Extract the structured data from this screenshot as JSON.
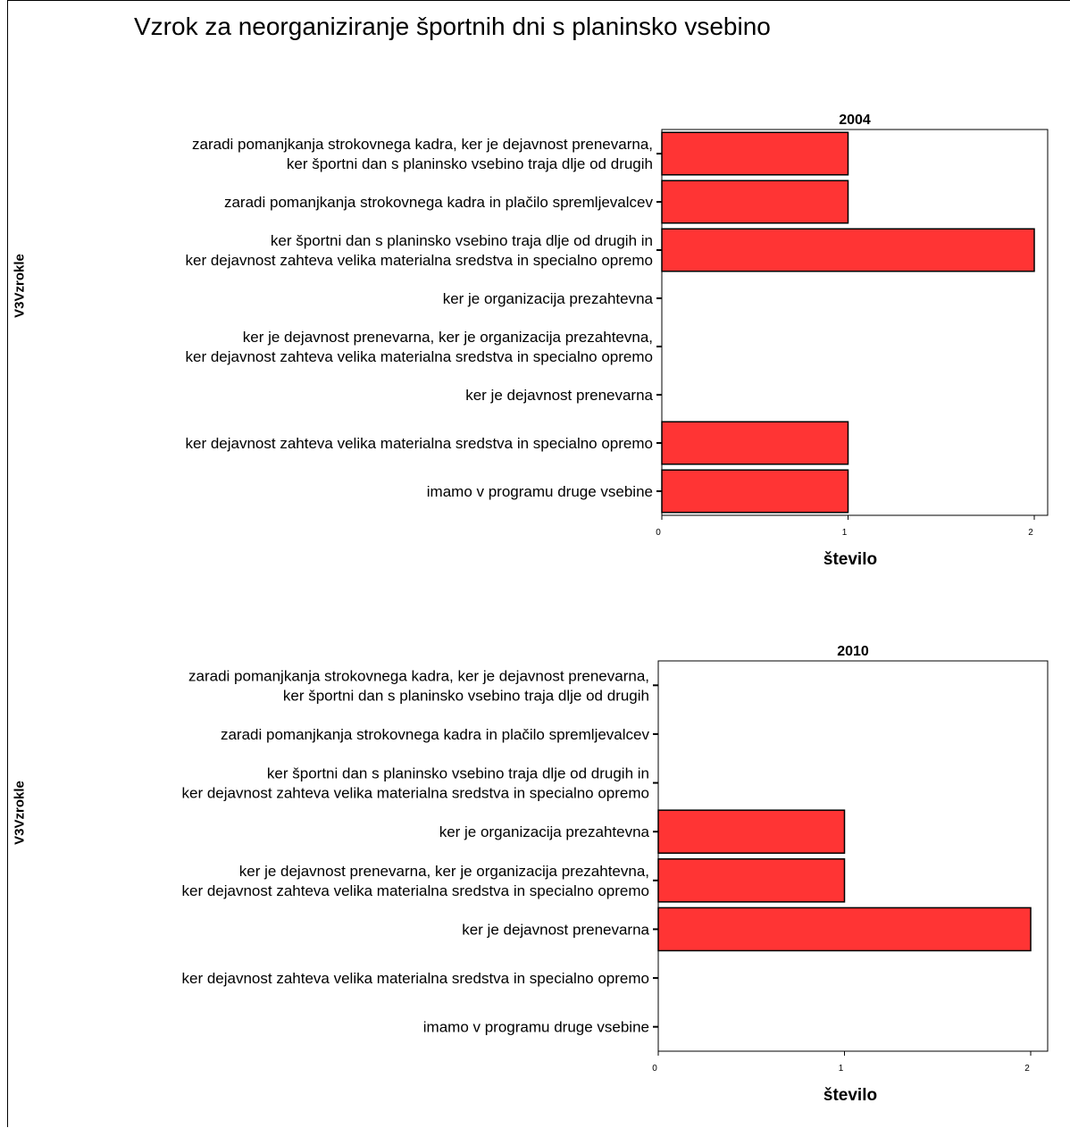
{
  "title": "Vzrok za neorganiziranje športnih dni s planinsko vsebino",
  "colors": {
    "bar": "#ff3434",
    "bar_stroke": "#000000"
  },
  "chart_data": [
    {
      "type": "bar",
      "orientation": "horizontal",
      "title": "2004",
      "xlabel": "število",
      "ylabel": "V3Vzrokle",
      "xlim": [
        0,
        2
      ],
      "xticks": [
        "0",
        "1",
        "2"
      ],
      "categories": [
        [
          "zaradi pomanjkanja strokovnega kadra, ker je dejavnost prenevarna,",
          "ker športni dan s planinsko vsebino traja dlje od drugih"
        ],
        [
          "zaradi pomanjkanja strokovnega kadra in plačilo spremljevalcev"
        ],
        [
          "ker športni dan s planinsko vsebino traja dlje od drugih in",
          "ker dejavnost zahteva velika materialna sredstva in specialno opremo"
        ],
        [
          "ker je organizacija prezahtevna"
        ],
        [
          "ker je dejavnost prenevarna, ker je organizacija prezahtevna,",
          "ker dejavnost zahteva velika materialna sredstva in specialno opremo"
        ],
        [
          "ker je dejavnost prenevarna"
        ],
        [
          "ker dejavnost zahteva velika materialna sredstva in specialno opremo"
        ],
        [
          "imamo v programu druge vsebine"
        ]
      ],
      "values": [
        1,
        1,
        2,
        0,
        0,
        0,
        1,
        1
      ]
    },
    {
      "type": "bar",
      "orientation": "horizontal",
      "title": "2010",
      "xlabel": "število",
      "ylabel": "V3Vzrokle",
      "xlim": [
        0,
        2
      ],
      "xticks": [
        "0",
        "1",
        "2"
      ],
      "categories": [
        [
          "zaradi pomanjkanja strokovnega kadra, ker je dejavnost prenevarna,",
          "ker športni dan s planinsko vsebino traja dlje od drugih"
        ],
        [
          "zaradi pomanjkanja strokovnega kadra in plačilo spremljevalcev"
        ],
        [
          "ker športni dan s planinsko vsebino traja dlje od drugih in",
          "ker dejavnost zahteva velika materialna sredstva in specialno opremo"
        ],
        [
          "ker je organizacija prezahtevna"
        ],
        [
          "ker je dejavnost prenevarna, ker je organizacija prezahtevna,",
          "ker dejavnost zahteva velika materialna sredstva in specialno opremo"
        ],
        [
          "ker je dejavnost prenevarna"
        ],
        [
          "ker dejavnost zahteva velika materialna sredstva in specialno opremo"
        ],
        [
          "imamo v programu druge vsebine"
        ]
      ],
      "values": [
        0,
        0,
        0,
        1,
        1,
        2,
        0,
        0
      ]
    }
  ]
}
